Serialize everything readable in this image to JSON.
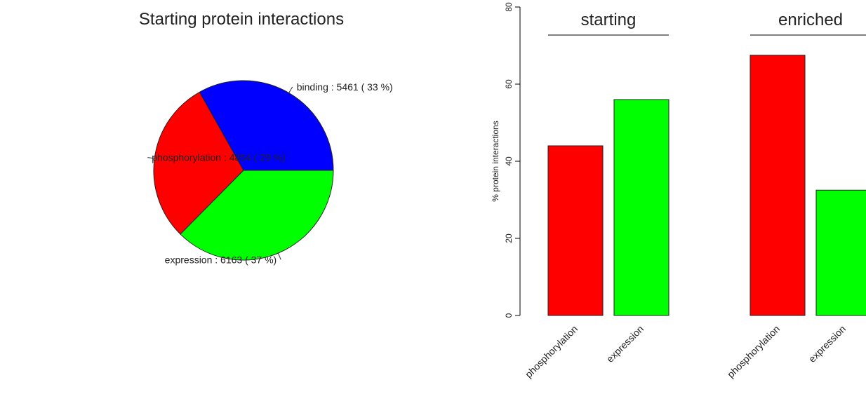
{
  "chart_data": [
    {
      "type": "pie",
      "title": "Starting protein interactions",
      "slices": [
        {
          "label": "binding",
          "value": 5461,
          "percent": 33,
          "color": "#0000ff",
          "text": "binding :  5461  ( 33 %)"
        },
        {
          "label": "phosphorylation",
          "value": 4854,
          "percent": 29,
          "color": "#ff0000",
          "text": "phosphorylation :  4854  ( 29 %)"
        },
        {
          "label": "expression",
          "value": 6163,
          "percent": 37,
          "color": "#00ff00",
          "text": "expression :  6163  ( 37 %)"
        }
      ]
    },
    {
      "type": "bar",
      "title": "",
      "xlabel": "",
      "ylabel": "% protein interactions",
      "ylim": [
        0,
        80
      ],
      "yticks": [
        "0",
        "20",
        "40",
        "60",
        "80"
      ],
      "grid": false,
      "groups": [
        {
          "label": "starting",
          "bars": [
            {
              "label": "phosphorylation",
              "value": 44,
              "color": "#ff0000"
            },
            {
              "label": "expression",
              "value": 56,
              "color": "#00ff00"
            }
          ]
        },
        {
          "label": "enriched",
          "bars": [
            {
              "label": "phosphorylation",
              "value": 67.5,
              "color": "#ff0000"
            },
            {
              "label": "expression",
              "value": 32.5,
              "color": "#00ff00"
            }
          ]
        }
      ]
    }
  ]
}
